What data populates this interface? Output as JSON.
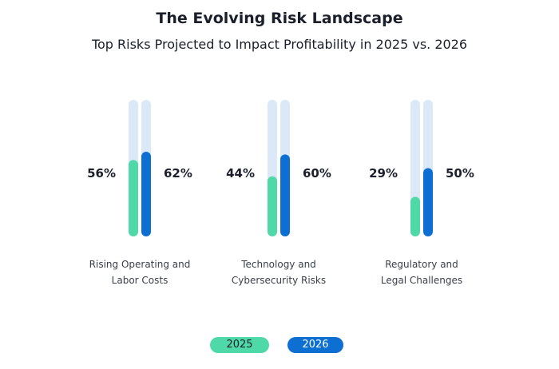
{
  "chart_data": {
    "type": "bar",
    "title": "The Evolving Risk Landscape",
    "subtitle": "Top Risks Projected to Impact Profitability in 2025 vs. 2026",
    "categories": [
      [
        "Rising Operating and",
        "Labor Costs"
      ],
      [
        "Technology and",
        "Cybersecurity Risks"
      ],
      [
        "Regulatory and",
        "Legal Challenges"
      ]
    ],
    "series": [
      {
        "name": "2025",
        "values": [
          56,
          44,
          29
        ],
        "labels": [
          "56%",
          "44%",
          "29%"
        ],
        "color": "#4fd8a8",
        "track_color": "#dbe8f7"
      },
      {
        "name": "2026",
        "values": [
          62,
          60,
          50
        ],
        "labels": [
          "62%",
          "60%",
          "50%"
        ],
        "color": "#0d6fd1",
        "track_color": "#dbe8f7"
      }
    ],
    "ylim": [
      0,
      100
    ],
    "legend_position": "bottom-center",
    "grid": false
  }
}
